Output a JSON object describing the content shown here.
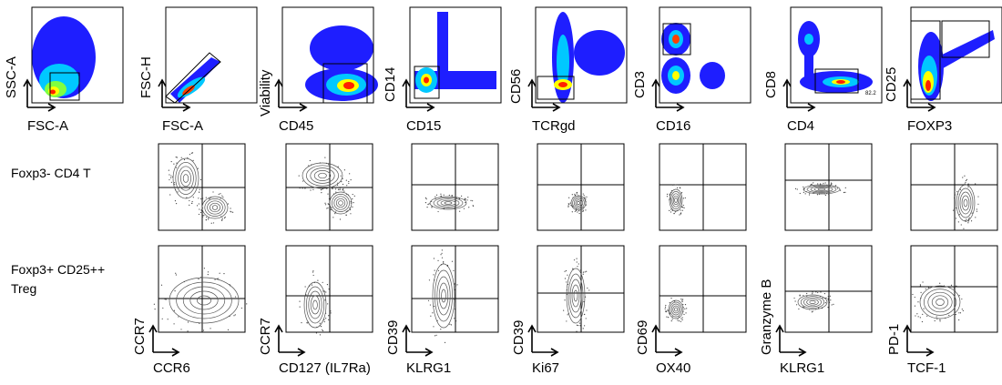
{
  "row_labels": {
    "row2": "Foxp3- CD4 T",
    "row3": "Foxp3+ CD25++ Treg"
  },
  "gating_panels": [
    {
      "id": "g1",
      "x_label": "FSC-A",
      "y_label": "SSC-A"
    },
    {
      "id": "g2",
      "x_label": "FSC-A",
      "y_label": "FSC-H"
    },
    {
      "id": "g3",
      "x_label": "CD45",
      "y_label": "Viability"
    },
    {
      "id": "g4",
      "x_label": "CD15",
      "y_label": "CD14"
    },
    {
      "id": "g5",
      "x_label": "TCRgd",
      "y_label": "CD56"
    },
    {
      "id": "g6",
      "x_label": "CD16",
      "y_label": "CD3"
    },
    {
      "id": "g7",
      "x_label": "CD4",
      "y_label": "CD8",
      "gate_value": "82.2"
    },
    {
      "id": "g8",
      "x_label": "FOXP3",
      "y_label": "CD25"
    }
  ],
  "phenotype_columns": [
    {
      "x_label": "CCR6",
      "y_label": "CCR7"
    },
    {
      "x_label": "CD127 (IL7Ra)",
      "y_label": "CCR7"
    },
    {
      "x_label": "KLRG1",
      "y_label": "CD39"
    },
    {
      "x_label": "Ki67",
      "y_label": "CD39"
    },
    {
      "x_label": "OX40",
      "y_label": "CD69"
    },
    {
      "x_label": "KLRG1",
      "y_label": "Granzyme B"
    },
    {
      "x_label": "TCF-1",
      "y_label": "PD-1"
    }
  ],
  "colors": {
    "density_low": "#0000ff",
    "density_mid": "#00ffff",
    "density_high": "#ffff00",
    "density_peak": "#ff0000",
    "contour": "#555555"
  }
}
